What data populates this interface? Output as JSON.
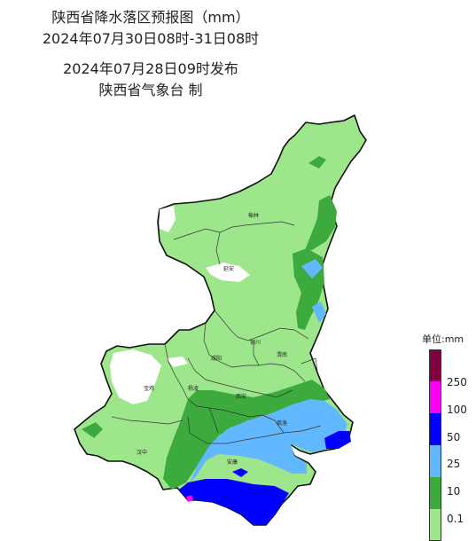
{
  "title": {
    "line1": "陕西省降水落区预报图（mm）",
    "line2": "2024年07月30日08时-31日08时",
    "line3": "2024年07月28日09时发布",
    "line4": "陕西省气象台 制"
  },
  "map": {
    "cities": [
      {
        "key": "yulin",
        "label": "榆林"
      },
      {
        "key": "yanan",
        "label": "延安"
      },
      {
        "key": "tongchuan",
        "label": "铜川"
      },
      {
        "key": "weinan",
        "label": "渭南"
      },
      {
        "key": "xianyang",
        "label": "咸阳"
      },
      {
        "key": "baoji",
        "label": "宝鸡"
      },
      {
        "key": "yangling",
        "label": "杨凌"
      },
      {
        "key": "xian",
        "label": "西安"
      },
      {
        "key": "shangluo",
        "label": "商洛"
      },
      {
        "key": "hanzhong",
        "label": "汉中"
      },
      {
        "key": "ankang",
        "label": "安康"
      }
    ]
  },
  "legend": {
    "unit": "单位:mm",
    "levels": [
      {
        "label": "0.1",
        "color": "#9ee68c"
      },
      {
        "label": "10",
        "color": "#3caa3c"
      },
      {
        "label": "25",
        "color": "#62b8ff"
      },
      {
        "label": "50",
        "color": "#0000ff"
      },
      {
        "label": "100",
        "color": "#fa00fa"
      },
      {
        "label": "250",
        "color": "#800040"
      }
    ]
  }
}
